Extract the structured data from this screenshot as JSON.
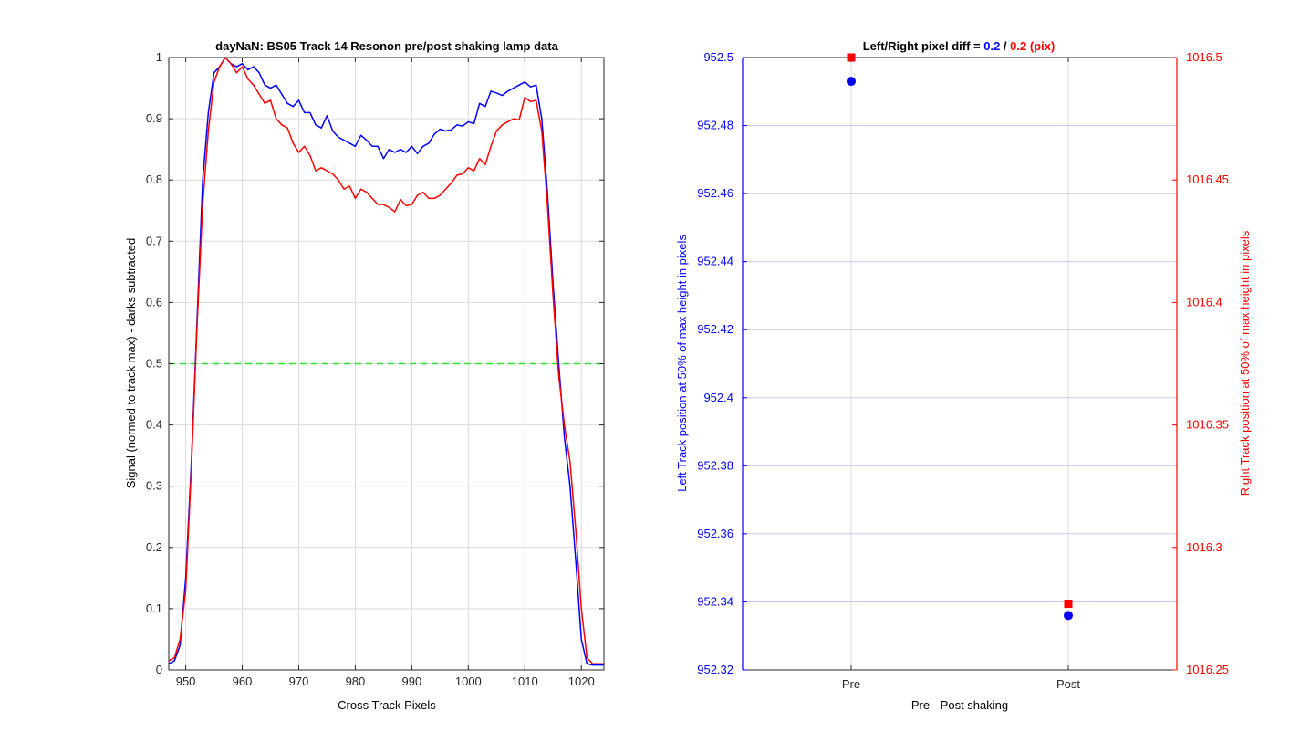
{
  "chart_data": [
    {
      "type": "line",
      "title": "dayNaN: BS05  Track 14 Resonon pre/post shaking lamp data",
      "xlabel": "Cross Track Pixels",
      "ylabel": "Signal (normed to track max) - darks subtracted",
      "xlim": [
        947,
        1024
      ],
      "ylim": [
        0,
        1
      ],
      "xticks": [
        950,
        960,
        970,
        980,
        990,
        1000,
        1010,
        1020
      ],
      "yticks": [
        0,
        0.1,
        0.2,
        0.3,
        0.4,
        0.5,
        0.6,
        0.7,
        0.8,
        0.9,
        1
      ],
      "grid": true,
      "colors": {
        "blue": "#0000ff",
        "red": "#ff0000",
        "threshold": "#33dd33"
      },
      "threshold": 0.5,
      "series": [
        {
          "color": "#0000ff",
          "x": [
            947,
            948,
            949,
            950,
            951,
            952,
            953,
            954,
            955,
            956,
            957,
            958,
            959,
            960,
            961,
            962,
            963,
            964,
            965,
            966,
            967,
            968,
            969,
            970,
            971,
            972,
            973,
            974,
            975,
            976,
            977,
            978,
            979,
            980,
            981,
            982,
            983,
            984,
            985,
            986,
            987,
            988,
            989,
            990,
            991,
            992,
            993,
            994,
            995,
            996,
            997,
            998,
            999,
            1000,
            1001,
            1002,
            1003,
            1004,
            1005,
            1006,
            1007,
            1008,
            1009,
            1010,
            1011,
            1012,
            1013,
            1014,
            1015,
            1016,
            1017,
            1018,
            1019,
            1020,
            1021,
            1022,
            1023,
            1024
          ],
          "y": [
            0.01,
            0.015,
            0.04,
            0.15,
            0.34,
            0.57,
            0.8,
            0.91,
            0.975,
            0.985,
            1.0,
            0.99,
            0.985,
            0.99,
            0.98,
            0.985,
            0.975,
            0.955,
            0.95,
            0.955,
            0.94,
            0.925,
            0.92,
            0.93,
            0.91,
            0.91,
            0.89,
            0.885,
            0.905,
            0.88,
            0.87,
            0.865,
            0.86,
            0.855,
            0.873,
            0.865,
            0.855,
            0.855,
            0.835,
            0.85,
            0.845,
            0.85,
            0.845,
            0.855,
            0.843,
            0.855,
            0.86,
            0.875,
            0.883,
            0.88,
            0.882,
            0.89,
            0.888,
            0.895,
            0.892,
            0.925,
            0.92,
            0.945,
            0.942,
            0.938,
            0.945,
            0.95,
            0.955,
            0.96,
            0.952,
            0.955,
            0.9,
            0.78,
            0.63,
            0.5,
            0.38,
            0.3,
            0.18,
            0.05,
            0.01,
            0.008,
            0.008,
            0.008
          ]
        },
        {
          "color": "#ff0000",
          "x": [
            947,
            948,
            949,
            950,
            951,
            952,
            953,
            954,
            955,
            956,
            957,
            958,
            959,
            960,
            961,
            962,
            963,
            964,
            965,
            966,
            967,
            968,
            969,
            970,
            971,
            972,
            973,
            974,
            975,
            976,
            977,
            978,
            979,
            980,
            981,
            982,
            983,
            984,
            985,
            986,
            987,
            988,
            989,
            990,
            991,
            992,
            993,
            994,
            995,
            996,
            997,
            998,
            999,
            1000,
            1001,
            1002,
            1003,
            1004,
            1005,
            1006,
            1007,
            1008,
            1009,
            1010,
            1011,
            1012,
            1013,
            1014,
            1015,
            1016,
            1017,
            1018,
            1019,
            1020,
            1021,
            1022,
            1023,
            1024
          ],
          "y": [
            0.015,
            0.02,
            0.05,
            0.13,
            0.33,
            0.56,
            0.76,
            0.88,
            0.96,
            0.985,
            1.0,
            0.99,
            0.975,
            0.985,
            0.965,
            0.955,
            0.94,
            0.925,
            0.93,
            0.9,
            0.89,
            0.885,
            0.86,
            0.845,
            0.855,
            0.84,
            0.815,
            0.82,
            0.815,
            0.81,
            0.8,
            0.785,
            0.79,
            0.77,
            0.785,
            0.78,
            0.77,
            0.76,
            0.76,
            0.755,
            0.748,
            0.768,
            0.758,
            0.76,
            0.775,
            0.78,
            0.77,
            0.77,
            0.775,
            0.785,
            0.795,
            0.808,
            0.81,
            0.82,
            0.815,
            0.835,
            0.825,
            0.855,
            0.88,
            0.89,
            0.895,
            0.9,
            0.898,
            0.935,
            0.928,
            0.93,
            0.88,
            0.76,
            0.61,
            0.48,
            0.4,
            0.34,
            0.23,
            0.1,
            0.02,
            0.01,
            0.01,
            0.01
          ]
        }
      ]
    },
    {
      "type": "scatter",
      "title_parts": [
        {
          "text": "Left/Right pixel diff = ",
          "color": "#000000"
        },
        {
          "text": "0.2",
          "color": "#0000ff"
        },
        {
          "text": " / ",
          "color": "#000000"
        },
        {
          "text": "0.2 (pix)",
          "color": "#ff0000"
        }
      ],
      "xlabel": "Pre - Post shaking",
      "ylabel_left": "Left Track position at 50% of max height in pixels",
      "ylabel_right": "Right Track position at 50% of max height in pixels",
      "categories": [
        "Pre",
        "Post"
      ],
      "xlim": [
        0.5,
        2.5
      ],
      "ylim_left": [
        952.32,
        952.5
      ],
      "ylim_right": [
        1016.25,
        1016.5
      ],
      "yticks_left": [
        "952.32",
        "952.34",
        "952.36",
        "952.38",
        "952.4",
        "952.42",
        "952.44",
        "952.46",
        "952.48",
        "952.5"
      ],
      "yticks_right": [
        "1016.25",
        "1016.3",
        "1016.35",
        "1016.4",
        "1016.45",
        "1016.5"
      ],
      "grid": true,
      "series": [
        {
          "axis": "left",
          "marker": "circle",
          "color": "#0000ff",
          "values": [
            952.493,
            952.336
          ]
        },
        {
          "axis": "right",
          "marker": "square",
          "color": "#ff0000",
          "values": [
            1016.5,
            1016.277
          ]
        }
      ]
    }
  ]
}
